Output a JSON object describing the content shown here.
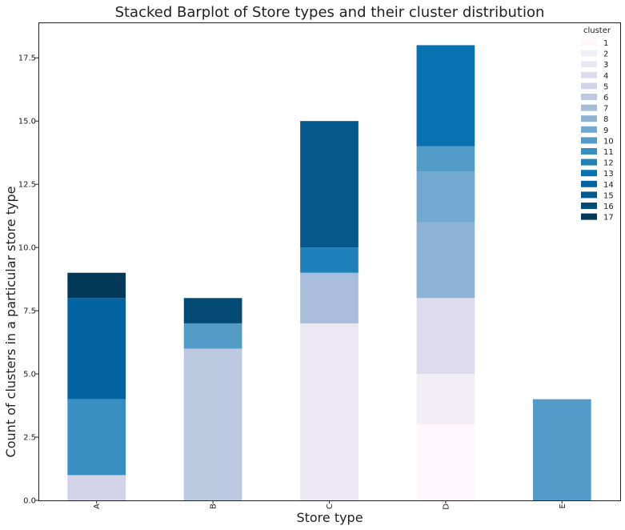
{
  "chart_data": {
    "type": "bar",
    "stacked": true,
    "title": "Stacked Barplot of Store types and their cluster distribution",
    "xlabel": "Store type",
    "ylabel": "Count of clusters in a particular store type",
    "categories": [
      "A",
      "B",
      "C",
      "D",
      "E"
    ],
    "ylim": [
      0,
      18.9
    ],
    "yticks": [
      "0.0",
      "2.5",
      "5.0",
      "7.5",
      "10.0",
      "12.5",
      "15.0",
      "17.5"
    ],
    "ytick_values": [
      0,
      2.5,
      5,
      7.5,
      10,
      12.5,
      15,
      17.5
    ],
    "grid": false,
    "legend": {
      "title": "cluster",
      "position": "top-right"
    },
    "series": [
      {
        "name": "1",
        "color": "#fff7fb",
        "values": [
          0,
          0,
          0,
          3,
          0
        ]
      },
      {
        "name": "2",
        "color": "#f3eef6",
        "values": [
          0,
          0,
          0,
          2,
          0
        ]
      },
      {
        "name": "3",
        "color": "#ebe7f2",
        "values": [
          0,
          0,
          7,
          0,
          0
        ]
      },
      {
        "name": "4",
        "color": "#dedcec",
        "values": [
          0,
          0,
          0,
          3,
          0
        ]
      },
      {
        "name": "5",
        "color": "#d3d4e8",
        "values": [
          1,
          0,
          0,
          0,
          0
        ]
      },
      {
        "name": "6",
        "color": "#bdc8e1",
        "values": [
          0,
          6,
          0,
          0,
          0
        ]
      },
      {
        "name": "7",
        "color": "#a8bddc",
        "values": [
          0,
          0,
          2,
          0,
          0
        ]
      },
      {
        "name": "8",
        "color": "#8eb3d7",
        "values": [
          0,
          0,
          0,
          3,
          0
        ]
      },
      {
        "name": "9",
        "color": "#73a8d0",
        "values": [
          0,
          0,
          0,
          2,
          0
        ]
      },
      {
        "name": "10",
        "color": "#549cc8",
        "values": [
          0,
          1,
          0,
          1,
          4
        ]
      },
      {
        "name": "11",
        "color": "#3a8fc2",
        "values": [
          3,
          0,
          0,
          0,
          0
        ]
      },
      {
        "name": "12",
        "color": "#1f81b9",
        "values": [
          0,
          0,
          1,
          0,
          0
        ]
      },
      {
        "name": "13",
        "color": "#0871b1",
        "values": [
          0,
          0,
          0,
          4,
          0
        ]
      },
      {
        "name": "14",
        "color": "#0464a2",
        "values": [
          4,
          0,
          0,
          0,
          0
        ]
      },
      {
        "name": "15",
        "color": "#04588e",
        "values": [
          0,
          0,
          5,
          0,
          0
        ]
      },
      {
        "name": "16",
        "color": "#034a76",
        "values": [
          0,
          1,
          0,
          0,
          0
        ]
      },
      {
        "name": "17",
        "color": "#023858",
        "values": [
          1,
          0,
          0,
          0,
          0
        ]
      }
    ]
  }
}
